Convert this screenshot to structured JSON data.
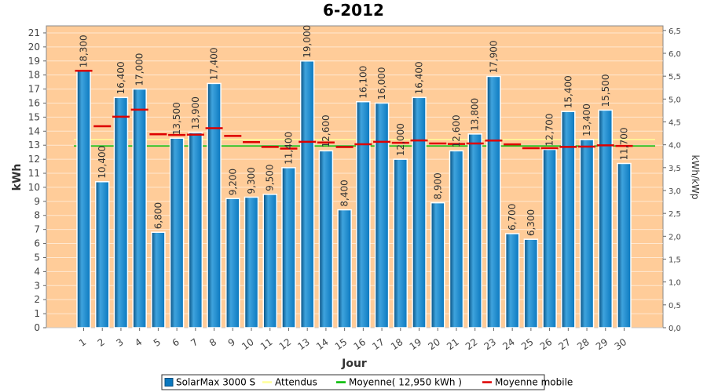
{
  "chart_data": {
    "type": "bar",
    "title": "6-2012",
    "xlabel": "Jour",
    "ylabel": "kWh",
    "ylabel_right": "kWh/kWp",
    "ylim": [
      0,
      21.5
    ],
    "ylim_right": [
      0,
      6.6
    ],
    "yticks": [
      "0",
      "1",
      "2",
      "3",
      "4",
      "5",
      "6",
      "7",
      "8",
      "9",
      "10",
      "11",
      "12",
      "13",
      "14",
      "15",
      "16",
      "17",
      "18",
      "19",
      "20",
      "21"
    ],
    "yticks_right": [
      "0,0",
      "0,5",
      "1,0",
      "1,5",
      "2,0",
      "2,5",
      "3,0",
      "3,5",
      "4,0",
      "4,5",
      "5,0",
      "5,5",
      "6,0",
      "6,5"
    ],
    "categories": [
      "1",
      "2",
      "3",
      "4",
      "5",
      "6",
      "7",
      "8",
      "9",
      "10",
      "11",
      "12",
      "13",
      "14",
      "15",
      "16",
      "17",
      "18",
      "19",
      "20",
      "21",
      "22",
      "23",
      "24",
      "25",
      "26",
      "27",
      "28",
      "29",
      "30"
    ],
    "grid": true,
    "legend_position": "bottom",
    "colors": {
      "plot_bg": "#ffcc99",
      "bar": "#0a78bf",
      "bar_light": "#3fa3dd",
      "bar_dark": "#064f80",
      "attendus": "#ffff99",
      "moyenne": "#00bb00",
      "mobile": "#dd0000"
    },
    "series": [
      {
        "name": "SolarMax 3000 S",
        "kind": "bar",
        "values": [
          18.3,
          10.4,
          16.4,
          17.0,
          6.8,
          13.5,
          13.9,
          17.4,
          9.2,
          9.3,
          9.5,
          11.4,
          19.0,
          12.6,
          8.4,
          16.1,
          16.0,
          12.0,
          16.4,
          8.9,
          12.6,
          13.8,
          17.9,
          6.7,
          6.3,
          12.7,
          15.4,
          13.4,
          15.5,
          11.7
        ],
        "labels": [
          "18,300",
          "10,400",
          "16,400",
          "17,000",
          "6,800",
          "13,500",
          "13,900",
          "17,400",
          "9,200",
          "9,300",
          "9,500",
          "11,400",
          "19,000",
          "12,600",
          "8,400",
          "16,100",
          "16,000",
          "12,000",
          "16,400",
          "8,900",
          "12,600",
          "13,800",
          "17,900",
          "6,700",
          "6,300",
          "12,700",
          "15,400",
          "13,400",
          "15,500",
          "11,700"
        ]
      },
      {
        "name": "Attendus",
        "kind": "line",
        "value": 13.4
      },
      {
        "name": "Moyenne( 12,950 kWh )",
        "kind": "line",
        "value": 12.95
      },
      {
        "name": "Moyenne mobile",
        "kind": "marker",
        "values": [
          18.3,
          14.35,
          15.03,
          15.53,
          13.78,
          13.73,
          13.75,
          14.21,
          13.66,
          13.22,
          12.88,
          12.76,
          13.24,
          13.19,
          12.87,
          13.07,
          13.24,
          13.17,
          13.34,
          13.12,
          13.09,
          13.12,
          13.33,
          13.06,
          12.79,
          12.79,
          12.88,
          12.9,
          12.99,
          12.95
        ]
      }
    ]
  }
}
